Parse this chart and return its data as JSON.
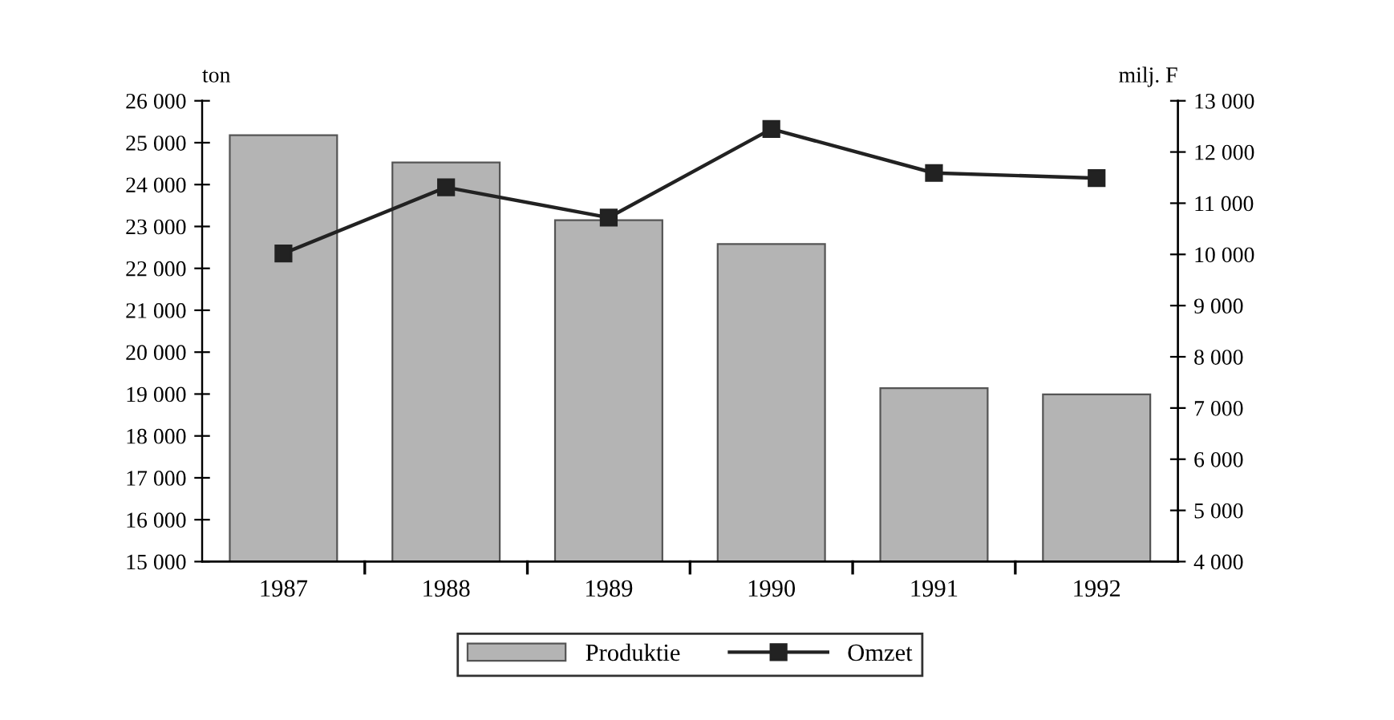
{
  "chart_data": {
    "type": "bar",
    "ylabel": "ton",
    "y2label": "milj. F",
    "categories": [
      "1987",
      "1988",
      "1989",
      "1990",
      "1991",
      "1992"
    ],
    "series": [
      {
        "name": "Produktie",
        "color": "#b4b4b4",
        "values": [
          25180,
          24530,
          23150,
          22580,
          19140,
          18990
        ]
      },
      {
        "name": "Omzet",
        "type": "line",
        "axis": "y2",
        "color": "#222222",
        "values": [
          10020,
          11310,
          10720,
          12450,
          11590,
          11490
        ]
      }
    ],
    "ylim": [
      15000,
      26000
    ],
    "yticks": [
      {
        "value": 15000,
        "label": "15 000"
      },
      {
        "value": 16000,
        "label": "16 000"
      },
      {
        "value": 17000,
        "label": "17 000"
      },
      {
        "value": 18000,
        "label": "18 000"
      },
      {
        "value": 19000,
        "label": "19 000"
      },
      {
        "value": 20000,
        "label": "20 000"
      },
      {
        "value": 21000,
        "label": "21 000"
      },
      {
        "value": 22000,
        "label": "22 000"
      },
      {
        "value": 23000,
        "label": "23 000"
      },
      {
        "value": 24000,
        "label": "24 000"
      },
      {
        "value": 25000,
        "label": "25 000"
      },
      {
        "value": 26000,
        "label": "26 000"
      }
    ],
    "y2lim": [
      4000,
      13000
    ],
    "y2ticks": [
      {
        "value": 4000,
        "label": "4 000"
      },
      {
        "value": 5000,
        "label": "5 000"
      },
      {
        "value": 6000,
        "label": "6 000"
      },
      {
        "value": 7000,
        "label": "7 000"
      },
      {
        "value": 8000,
        "label": "8 000"
      },
      {
        "value": 9000,
        "label": "9 000"
      },
      {
        "value": 10000,
        "label": "10 000"
      },
      {
        "value": 11000,
        "label": "11 000"
      },
      {
        "value": 12000,
        "label": "12 000"
      },
      {
        "value": 13000,
        "label": "13 000"
      }
    ],
    "marker": "square",
    "line_style": "solid",
    "grid": false,
    "legend": "bottom"
  }
}
